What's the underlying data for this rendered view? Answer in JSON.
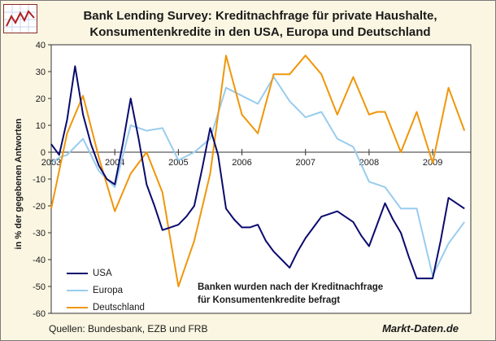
{
  "title_line1": "Bank Lending Survey:  Kreditnachfrage für private Haushalte,",
  "title_line2": "Konsumentenkredite in den USA, Europa und Deutschland",
  "source": "Quellen: Bundesbank, EZB und FRB",
  "brand": "Markt-Daten.de",
  "note_line1": "Banken wurden nach der Kreditnachfrage",
  "note_line2": "für Konsumentenkredite befragt",
  "colors": {
    "USA": "#0a0a6e",
    "Europa": "#99ccee",
    "Deutschland": "#f0960a",
    "plot_bg": "#ffffff",
    "frame_bg": "#fbf6e2"
  },
  "chart_data": {
    "type": "line",
    "ylabel": "in % der gegebenen Antworten",
    "ylim": [
      -60,
      40
    ],
    "yticks": [
      40,
      30,
      20,
      10,
      0,
      -10,
      -20,
      -30,
      -40,
      -50,
      -60
    ],
    "xlim": [
      2003.0,
      2009.6
    ],
    "xticks": [
      "2003",
      "2004",
      "2005",
      "2006",
      "2007",
      "2008",
      "2009"
    ],
    "grid": false,
    "legend": "bottom-left",
    "series": [
      {
        "name": "USA",
        "x": [
          2003.0,
          2003.125,
          2003.25,
          2003.375,
          2003.5,
          2003.625,
          2003.75,
          2003.875,
          2004.0,
          2004.125,
          2004.25,
          2004.375,
          2004.5,
          2004.625,
          2004.75,
          2004.875,
          2005.0,
          2005.125,
          2005.25,
          2005.375,
          2005.5,
          2005.625,
          2005.75,
          2005.875,
          2006.0,
          2006.125,
          2006.25,
          2006.375,
          2006.5,
          2006.625,
          2006.75,
          2006.875,
          2007.0,
          2007.125,
          2007.25,
          2007.375,
          2007.5,
          2007.625,
          2007.75,
          2007.875,
          2008.0,
          2008.125,
          2008.25,
          2008.375,
          2008.5,
          2008.625,
          2008.75,
          2008.875,
          2009.0,
          2009.125,
          2009.25,
          2009.375,
          2009.5
        ],
        "values": [
          3,
          -1,
          12,
          32,
          14,
          3,
          -5,
          -10,
          -12,
          3,
          20,
          5,
          -12,
          -20,
          -29,
          -28,
          -27,
          -24,
          -20,
          -6,
          9,
          -1,
          -21,
          -25,
          -28,
          -28,
          -27,
          -33,
          -37,
          -40,
          -43,
          -37,
          -32,
          -28,
          -24,
          -23,
          -22,
          -24,
          -26,
          -31,
          -35,
          -27,
          -19,
          -25,
          -30,
          -39,
          -47,
          -47,
          -47,
          -33,
          -17,
          -19,
          -21
        ]
      },
      {
        "name": "Europa",
        "x": [
          2003.0,
          2003.125,
          2003.25,
          2003.5,
          2003.75,
          2004.0,
          2004.25,
          2004.5,
          2004.75,
          2005.0,
          2005.25,
          2005.5,
          2005.75,
          2006.0,
          2006.25,
          2006.5,
          2006.75,
          2007.0,
          2007.25,
          2007.5,
          2007.75,
          2008.0,
          2008.25,
          2008.5,
          2008.75,
          2009.0,
          2009.25,
          2009.5
        ],
        "values": [
          -4,
          -2,
          -1,
          5,
          -7,
          -13,
          10,
          8,
          9,
          -3,
          0,
          5,
          24,
          21,
          18,
          28,
          19,
          13,
          15,
          5,
          2,
          -11,
          -13,
          -21,
          -21,
          -46,
          -34,
          -26
        ]
      },
      {
        "name": "Deutschland",
        "x": [
          2003.0,
          2003.25,
          2003.5,
          2003.75,
          2004.0,
          2004.25,
          2004.5,
          2004.75,
          2005.0,
          2005.25,
          2005.5,
          2005.75,
          2006.0,
          2006.25,
          2006.5,
          2006.75,
          2007.0,
          2007.25,
          2007.5,
          2007.75,
          2008.0,
          2008.125,
          2008.25,
          2008.5,
          2008.75,
          2009.0,
          2009.25,
          2009.5
        ],
        "values": [
          -21,
          7,
          21,
          -2,
          -22,
          -8,
          0,
          -15,
          -50,
          -33,
          -8,
          36,
          14,
          7,
          29,
          29,
          36,
          29,
          14,
          28,
          14,
          15,
          15,
          0,
          15,
          -4,
          24,
          8
        ]
      }
    ]
  }
}
